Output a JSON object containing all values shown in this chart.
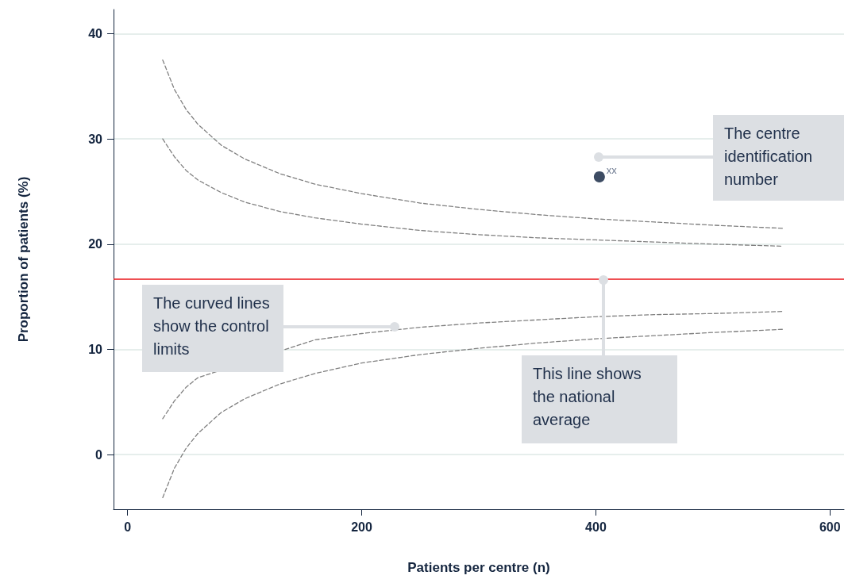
{
  "chart_data": {
    "type": "line",
    "xlabel": "Patients per centre (n)",
    "ylabel": "Proportion of patients (%)",
    "xlim": [
      -12,
      612
    ],
    "xticks": [
      0,
      200,
      400,
      600
    ],
    "ylim": [
      -5.2,
      42.3
    ],
    "yticks": [
      0,
      10,
      20,
      30,
      40
    ],
    "grid": "y",
    "marker": "none",
    "line_style": "dashed",
    "series": [
      {
        "color": "#808080",
        "x": [
          30,
          40,
          50,
          60,
          80,
          100,
          130,
          160,
          200,
          250,
          300,
          350,
          400,
          450,
          500,
          560
        ],
        "values": [
          37.5,
          34.7,
          32.8,
          31.4,
          29.4,
          28.1,
          26.7,
          25.7,
          24.8,
          23.9,
          23.3,
          22.8,
          22.4,
          22.1,
          21.8,
          21.5
        ]
      },
      {
        "color": "#808080",
        "x": [
          30,
          40,
          50,
          60,
          80,
          100,
          130,
          160,
          200,
          250,
          300,
          350,
          400,
          450,
          500,
          560
        ],
        "values": [
          30.0,
          28.3,
          27.0,
          26.1,
          24.9,
          24.0,
          23.1,
          22.5,
          21.9,
          21.3,
          20.9,
          20.6,
          20.4,
          20.2,
          20.0,
          19.8
        ]
      },
      {
        "color": "#808080",
        "x": [
          30,
          40,
          50,
          60,
          80,
          100,
          130,
          160,
          200,
          250,
          300,
          350,
          400,
          450,
          500,
          560
        ],
        "values": [
          3.4,
          5.1,
          6.4,
          7.3,
          null,
          null,
          null,
          10.9,
          11.5,
          12.1,
          12.5,
          12.8,
          13.1,
          13.3,
          13.4,
          13.6
        ]
      },
      {
        "color": "#808080",
        "x": [
          30,
          40,
          50,
          60,
          80,
          100,
          130,
          160,
          200,
          250,
          300,
          350,
          400,
          450,
          500,
          560
        ],
        "values": [
          -4.1,
          -1.3,
          0.6,
          2.0,
          4.0,
          5.3,
          6.7,
          7.7,
          8.7,
          9.5,
          10.1,
          10.6,
          11.0,
          11.3,
          11.6,
          11.9
        ]
      },
      {
        "type": "scatter",
        "marker": "circle",
        "color": "#0d1f3c",
        "x": [
          403
        ],
        "values": [
          26.4
        ],
        "value_labels": [
          "xx"
        ]
      }
    ],
    "ref_lines": [
      {
        "axis": "y",
        "value": 16.7,
        "color": "#e8141a",
        "line_style": "solid"
      }
    ],
    "annotations": [
      "The centre identification number",
      "The curved lines show the control limits",
      "This line shows the national average"
    ]
  }
}
